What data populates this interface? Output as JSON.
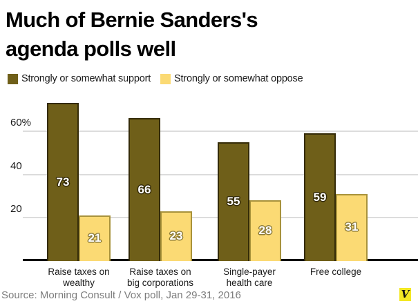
{
  "header": {
    "title": "Much of Bernie Sanders's\nagenda polls well"
  },
  "legend": [
    {
      "label": "Strongly or somewhat support",
      "color": "#6f5f19"
    },
    {
      "label": "Strongly or somewhat oppose",
      "color": "#fbda74"
    }
  ],
  "chart_data": {
    "type": "bar",
    "title": "Much of Bernie Sanders's agenda polls well",
    "categories": [
      "Raise taxes on\nwealthy",
      "Raise taxes on\nbig corporations",
      "Single-payer\nhealth care",
      "Free college"
    ],
    "series": [
      {
        "name": "Strongly or somewhat support",
        "values": [
          73,
          66,
          55,
          59
        ],
        "fill": "#6f5f19",
        "border": "#342b08",
        "label_outline": "#342b08"
      },
      {
        "name": "Strongly or somewhat oppose",
        "values": [
          21,
          23,
          28,
          31
        ],
        "fill": "#fbda74",
        "border": "#a8923b",
        "label_outline": "#8d7c3a"
      }
    ],
    "yticks": [
      {
        "value": 20,
        "label": "20"
      },
      {
        "value": 40,
        "label": "40"
      },
      {
        "value": 60,
        "label": "60%"
      }
    ],
    "ylim": [
      0,
      76
    ],
    "grid": true,
    "legend_position": "top",
    "xlabel": "",
    "ylabel": ""
  },
  "footer": {
    "source": "Source: Morning Consult / Vox poll, Jan 29-31, 2016",
    "logo_letter": "V",
    "logo_bg": "#f3e824"
  }
}
